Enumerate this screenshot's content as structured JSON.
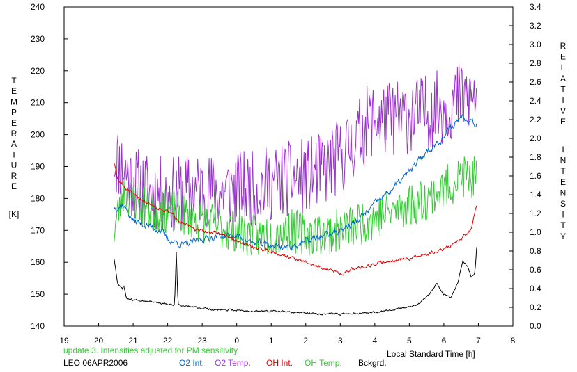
{
  "chart_data": {
    "type": "line",
    "left_axis": {
      "title_letters": [
        "T",
        "E",
        "M",
        "P",
        "E",
        "R",
        "A",
        "T",
        "U",
        "R",
        "E"
      ],
      "unit": "[K]",
      "range": [
        140,
        240
      ],
      "ticks": [
        "140",
        "150",
        "160",
        "170",
        "180",
        "190",
        "200",
        "210",
        "220",
        "230",
        "240"
      ]
    },
    "right_axis": {
      "title_word1": [
        "R",
        "E",
        "L",
        "A",
        "T",
        "I",
        "V",
        "E"
      ],
      "title_word2": [
        "I",
        "N",
        "T",
        "E",
        "N",
        "S",
        "I",
        "T",
        "Y"
      ],
      "range": [
        0.0,
        3.4
      ],
      "ticks": [
        "0.0",
        "0.2",
        "0.4",
        "0.6",
        "0.8",
        "1.0",
        "1.2",
        "1.4",
        "1.6",
        "1.8",
        "2.0",
        "2.2",
        "2.4",
        "2.6",
        "2.8",
        "3.0",
        "3.2",
        "3.4"
      ]
    },
    "x_axis": {
      "label": "Local Standard Time [h]",
      "range": [
        19,
        32
      ],
      "ticks": [
        "19",
        "20",
        "21",
        "22",
        "23",
        "0",
        "1",
        "2",
        "3",
        "4",
        "5",
        "6",
        "7",
        "8"
      ]
    },
    "series": [
      {
        "name": "O2 Temp.",
        "axis": "left",
        "color": "#9933cc",
        "noise": 12,
        "seed": 11,
        "points": [
          [
            20.45,
            193
          ],
          [
            20.7,
            190
          ],
          [
            21.0,
            185
          ],
          [
            21.5,
            182
          ],
          [
            22.0,
            181
          ],
          [
            22.5,
            182
          ],
          [
            23.0,
            183
          ],
          [
            23.5,
            182
          ],
          [
            24.0,
            183
          ],
          [
            24.5,
            183
          ],
          [
            25.0,
            185
          ],
          [
            25.5,
            186
          ],
          [
            26.0,
            187
          ],
          [
            26.5,
            189
          ],
          [
            27.0,
            193
          ],
          [
            27.5,
            199
          ],
          [
            27.8,
            204
          ],
          [
            28.0,
            205
          ],
          [
            28.5,
            205
          ],
          [
            29.0,
            206
          ],
          [
            29.5,
            207
          ],
          [
            30.0,
            209
          ],
          [
            30.5,
            211
          ],
          [
            30.95,
            212
          ]
        ]
      },
      {
        "name": "OH Temp.",
        "axis": "left",
        "color": "#33cc33",
        "noise": 7,
        "seed": 23,
        "points": [
          [
            20.45,
            170
          ],
          [
            20.7,
            182
          ],
          [
            21.0,
            180
          ],
          [
            21.5,
            176
          ],
          [
            22.0,
            176
          ],
          [
            22.5,
            175
          ],
          [
            23.0,
            173
          ],
          [
            23.5,
            171
          ],
          [
            24.0,
            170
          ],
          [
            24.5,
            168
          ],
          [
            25.0,
            169
          ],
          [
            25.5,
            170
          ],
          [
            26.0,
            169
          ],
          [
            26.5,
            169
          ],
          [
            27.0,
            170
          ],
          [
            27.5,
            172
          ],
          [
            28.0,
            174
          ],
          [
            28.5,
            176
          ],
          [
            29.0,
            178
          ],
          [
            29.5,
            180
          ],
          [
            30.0,
            183
          ],
          [
            30.5,
            187
          ],
          [
            30.95,
            186
          ]
        ]
      },
      {
        "name": "O2 Int.",
        "axis": "right",
        "color": "#0066cc",
        "noise": 0.03,
        "seed": 37,
        "points": [
          [
            20.45,
            1.26
          ],
          [
            20.7,
            1.3
          ],
          [
            21.0,
            1.12
          ],
          [
            21.5,
            1.06
          ],
          [
            21.8,
            1.02
          ],
          [
            22.0,
            0.92
          ],
          [
            22.5,
            0.86
          ],
          [
            23.0,
            0.93
          ],
          [
            23.5,
            0.96
          ],
          [
            24.0,
            0.96
          ],
          [
            24.5,
            0.88
          ],
          [
            25.0,
            0.86
          ],
          [
            25.5,
            0.84
          ],
          [
            26.0,
            0.9
          ],
          [
            26.5,
            0.96
          ],
          [
            27.0,
            1.02
          ],
          [
            27.5,
            1.12
          ],
          [
            28.0,
            1.3
          ],
          [
            28.5,
            1.46
          ],
          [
            29.0,
            1.64
          ],
          [
            29.5,
            1.86
          ],
          [
            30.0,
            2.02
          ],
          [
            30.5,
            2.24
          ],
          [
            30.8,
            2.2
          ],
          [
            30.95,
            2.16
          ]
        ]
      },
      {
        "name": "OH Int.",
        "axis": "right",
        "color": "#dd0000",
        "noise": 0.015,
        "seed": 51,
        "points": [
          [
            20.45,
            1.74
          ],
          [
            20.55,
            1.56
          ],
          [
            20.8,
            1.46
          ],
          [
            21.0,
            1.4
          ],
          [
            21.3,
            1.34
          ],
          [
            21.6,
            1.28
          ],
          [
            22.0,
            1.22
          ],
          [
            22.4,
            1.12
          ],
          [
            22.8,
            1.02
          ],
          [
            23.2,
            1.0
          ],
          [
            23.6,
            0.98
          ],
          [
            24.0,
            0.9
          ],
          [
            24.5,
            0.84
          ],
          [
            25.0,
            0.8
          ],
          [
            25.5,
            0.74
          ],
          [
            26.0,
            0.68
          ],
          [
            26.5,
            0.62
          ],
          [
            27.0,
            0.56
          ],
          [
            27.5,
            0.62
          ],
          [
            28.0,
            0.66
          ],
          [
            28.5,
            0.7
          ],
          [
            29.0,
            0.72
          ],
          [
            29.5,
            0.76
          ],
          [
            30.0,
            0.82
          ],
          [
            30.5,
            0.92
          ],
          [
            30.8,
            1.04
          ],
          [
            30.95,
            1.3
          ]
        ]
      },
      {
        "name": "Bckgrd.",
        "axis": "right",
        "color": "#000000",
        "noise": 0.008,
        "seed": 67,
        "points": [
          [
            20.45,
            0.72
          ],
          [
            20.55,
            0.46
          ],
          [
            20.7,
            0.4
          ],
          [
            20.72,
            0.45
          ],
          [
            20.8,
            0.3
          ],
          [
            21.0,
            0.28
          ],
          [
            21.5,
            0.27
          ],
          [
            22.0,
            0.23
          ],
          [
            22.2,
            0.22
          ],
          [
            22.25,
            0.78
          ],
          [
            22.3,
            0.22
          ],
          [
            22.8,
            0.2
          ],
          [
            23.5,
            0.17
          ],
          [
            24.0,
            0.17
          ],
          [
            24.5,
            0.16
          ],
          [
            25.0,
            0.16
          ],
          [
            25.5,
            0.15
          ],
          [
            26.0,
            0.14
          ],
          [
            26.5,
            0.13
          ],
          [
            27.0,
            0.13
          ],
          [
            27.5,
            0.14
          ],
          [
            28.0,
            0.15
          ],
          [
            28.5,
            0.18
          ],
          [
            29.0,
            0.2
          ],
          [
            29.3,
            0.24
          ],
          [
            29.6,
            0.36
          ],
          [
            29.8,
            0.46
          ],
          [
            30.0,
            0.34
          ],
          [
            30.2,
            0.3
          ],
          [
            30.4,
            0.46
          ],
          [
            30.55,
            0.7
          ],
          [
            30.7,
            0.62
          ],
          [
            30.8,
            0.52
          ],
          [
            30.9,
            0.56
          ],
          [
            30.95,
            0.84
          ]
        ]
      }
    ]
  },
  "footer": {
    "update_note": "update 3. Intensities adjusted for PM sensitivity",
    "station_date": "LEO 06APR2006",
    "legend": [
      {
        "label": "O2 Int.",
        "color": "#0066cc"
      },
      {
        "label": "O2 Temp.",
        "color": "#9933cc"
      },
      {
        "label": "OH Int.",
        "color": "#dd0000"
      },
      {
        "label": "OH Temp.",
        "color": "#33cc33"
      },
      {
        "label": "Bckgrd.",
        "color": "#000000"
      }
    ],
    "update_color": "#33cc33"
  }
}
